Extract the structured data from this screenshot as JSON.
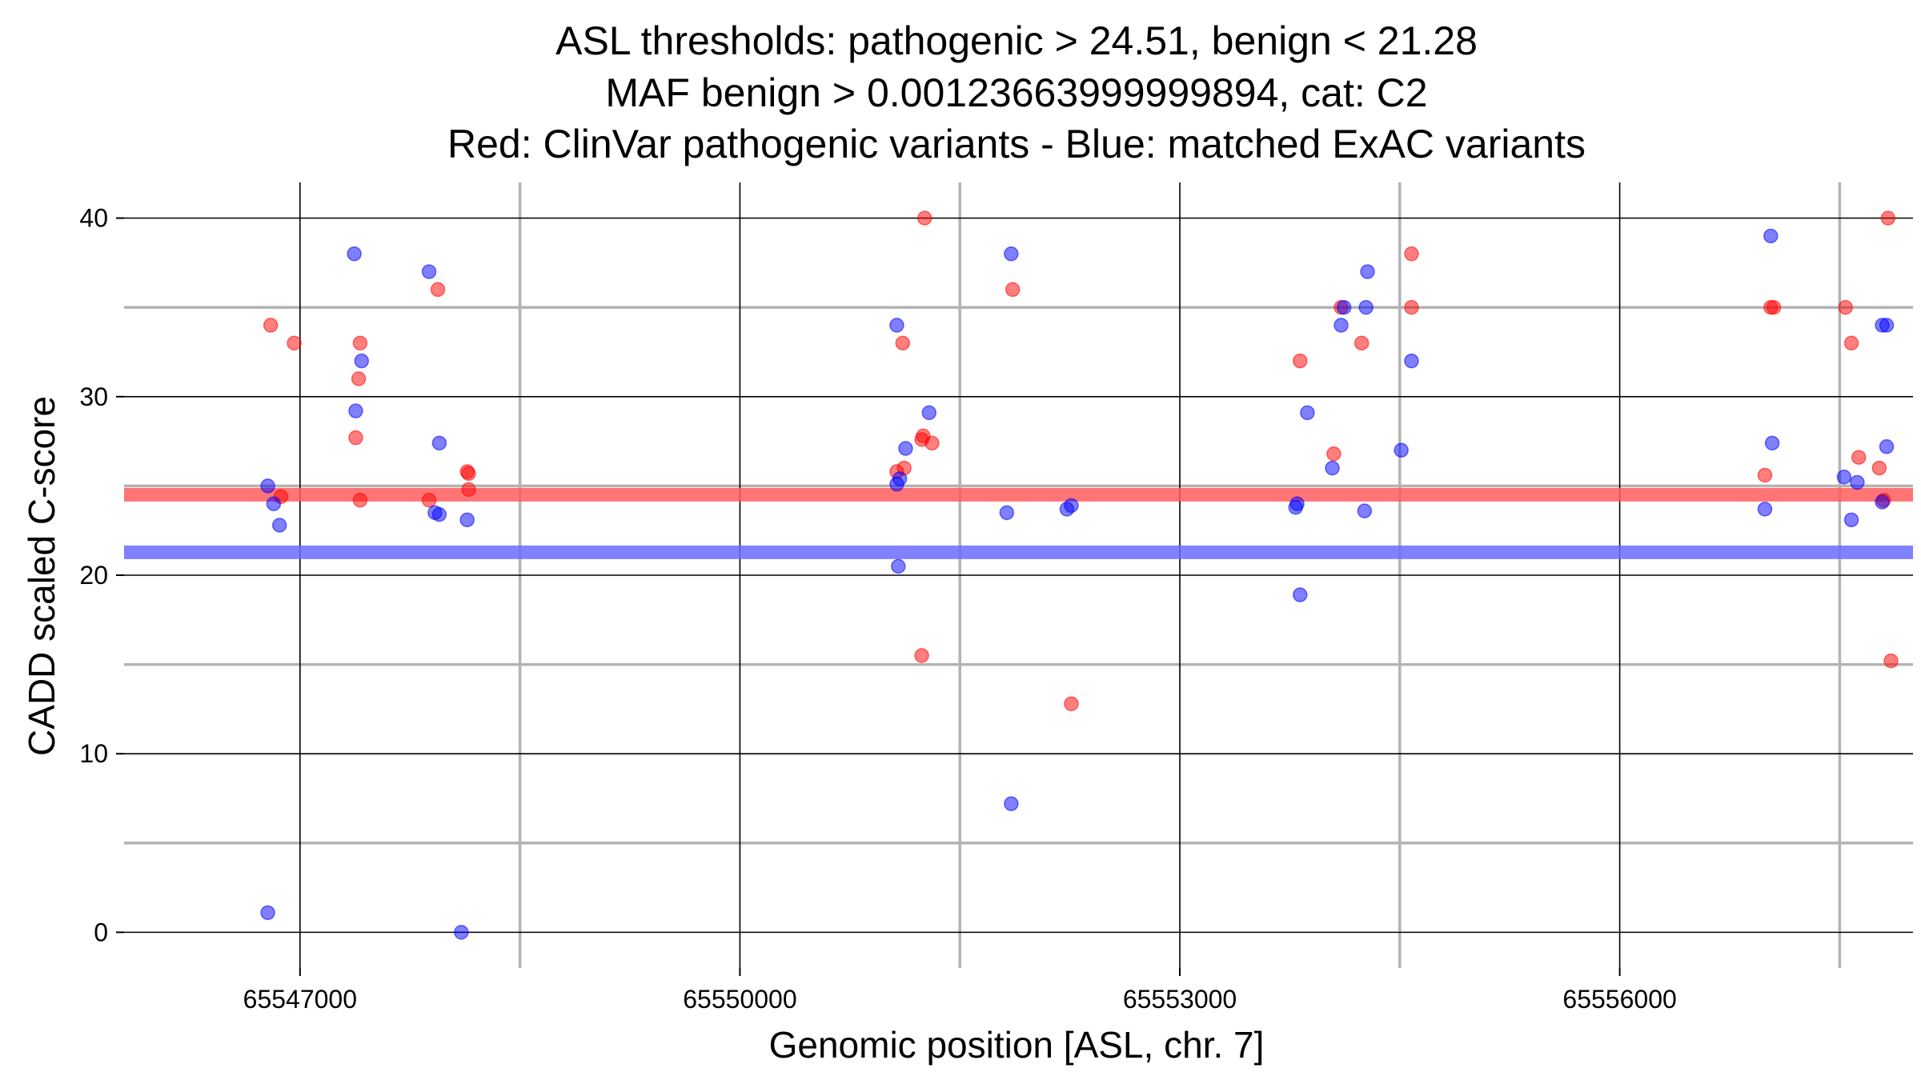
{
  "chart_data": {
    "type": "scatter",
    "title_lines": [
      "ASL thresholds: pathogenic > 24.51, benign < 21.28",
      "MAF benign > 0.00123663999999894, cat: C2",
      "Red: ClinVar pathogenic variants - Blue: matched ExAC variants"
    ],
    "xlabel": "Genomic position [ASL, chr. 7]",
    "ylabel": "CADD scaled C-score",
    "xlim": [
      65545800,
      65558000
    ],
    "ylim": [
      -2,
      42
    ],
    "x_ticks": [
      65547000,
      65550000,
      65553000,
      65556000
    ],
    "x_tick_labels": [
      "65547000",
      "65550000",
      "65553000",
      "65556000"
    ],
    "x_minor_grid": [
      65548500,
      65551500,
      65554500,
      65557500
    ],
    "y_ticks": [
      0,
      10,
      20,
      30,
      40
    ],
    "y_tick_labels": [
      "0",
      "10",
      "20",
      "30",
      "40"
    ],
    "y_minor_grid": [
      5,
      15,
      25,
      35
    ],
    "thresholds": [
      {
        "name": "pathogenic",
        "value": 24.51,
        "color": "#ff5c5c"
      },
      {
        "name": "benign",
        "value": 21.28,
        "color": "#6b6bff"
      }
    ],
    "series": [
      {
        "name": "ClinVar pathogenic variants",
        "color": "#ff0000",
        "points": [
          [
            65546800,
            34
          ],
          [
            65546870,
            24.4
          ],
          [
            65546960,
            33
          ],
          [
            65547380,
            27.7
          ],
          [
            65547400,
            31
          ],
          [
            65547410,
            33
          ],
          [
            65547410,
            24.2
          ],
          [
            65547880,
            24.2
          ],
          [
            65547940,
            36
          ],
          [
            65548140,
            25.8
          ],
          [
            65548150,
            25.7
          ],
          [
            65548150,
            24.8
          ],
          [
            65551070,
            25.8
          ],
          [
            65551120,
            26
          ],
          [
            65551110,
            33
          ],
          [
            65551250,
            27.8
          ],
          [
            65551240,
            27.6
          ],
          [
            65551310,
            27.4
          ],
          [
            65551260,
            40
          ],
          [
            65551240,
            15.5
          ],
          [
            65551860,
            36
          ],
          [
            65552260,
            12.8
          ],
          [
            65553820,
            32
          ],
          [
            65554050,
            26.8
          ],
          [
            65554100,
            35
          ],
          [
            65554240,
            33
          ],
          [
            65554580,
            35
          ],
          [
            65554580,
            38
          ],
          [
            65556990,
            25.6
          ],
          [
            65557050,
            35
          ],
          [
            65557030,
            35
          ],
          [
            65557540,
            35
          ],
          [
            65557580,
            33
          ],
          [
            65557630,
            26.6
          ],
          [
            65557770,
            26
          ],
          [
            65557800,
            24.2
          ],
          [
            65557830,
            40
          ],
          [
            65557850,
            15.2
          ]
        ]
      },
      {
        "name": "matched ExAC variants",
        "color": "#0000ff",
        "points": [
          [
            65546780,
            25
          ],
          [
            65546820,
            24
          ],
          [
            65546860,
            22.8
          ],
          [
            65546780,
            1.1
          ],
          [
            65547370,
            38
          ],
          [
            65547380,
            29.2
          ],
          [
            65547420,
            32
          ],
          [
            65547880,
            37
          ],
          [
            65547920,
            23.5
          ],
          [
            65547950,
            23.4
          ],
          [
            65547950,
            27.4
          ],
          [
            65548100,
            0
          ],
          [
            65548140,
            23.1
          ],
          [
            65551070,
            25.1
          ],
          [
            65551090,
            25.4
          ],
          [
            65551130,
            27.1
          ],
          [
            65551070,
            34
          ],
          [
            65551290,
            29.1
          ],
          [
            65551080,
            20.5
          ],
          [
            65551820,
            23.5
          ],
          [
            65551850,
            38
          ],
          [
            65551850,
            7.2
          ],
          [
            65552230,
            23.7
          ],
          [
            65552260,
            23.9
          ],
          [
            65553790,
            23.8
          ],
          [
            65553800,
            24
          ],
          [
            65553820,
            18.9
          ],
          [
            65553870,
            29.1
          ],
          [
            65554040,
            26
          ],
          [
            65554100,
            34
          ],
          [
            65554120,
            35
          ],
          [
            65554260,
            23.6
          ],
          [
            65554270,
            35
          ],
          [
            65554280,
            37
          ],
          [
            65554510,
            27
          ],
          [
            65554580,
            32
          ],
          [
            65556990,
            23.7
          ],
          [
            65557040,
            27.4
          ],
          [
            65557030,
            39
          ],
          [
            65557530,
            25.5
          ],
          [
            65557580,
            23.1
          ],
          [
            65557620,
            25.2
          ],
          [
            65557790,
            24.1
          ],
          [
            65557790,
            34
          ],
          [
            65557820,
            34
          ],
          [
            65557820,
            27.2
          ]
        ]
      }
    ]
  }
}
